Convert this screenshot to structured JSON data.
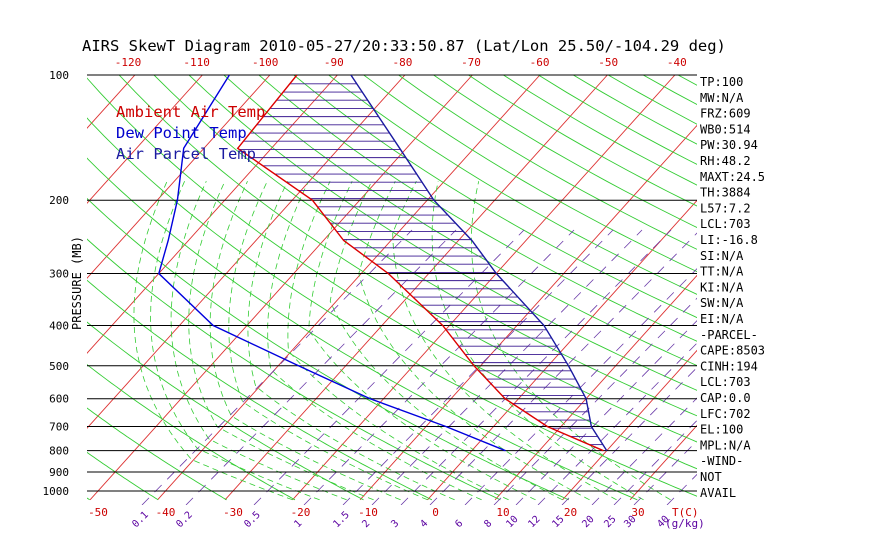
{
  "chart_data": {
    "type": "skew-t",
    "title": "AIRS SkewT Diagram 2010-05-27/20:33:50.87 (Lat/Lon 25.50/-104.29 deg)",
    "ylabel": "PRESSURE (MB)",
    "legend": [
      {
        "label": "Ambient Air Temp",
        "color": "#cc0000"
      },
      {
        "label": "Dew Point Temp",
        "color": "#0000cc"
      },
      {
        "label": "Air Parcel Temp",
        "color": "#1a1aa0"
      }
    ],
    "pressure_ticks": [
      100,
      200,
      300,
      400,
      500,
      600,
      700,
      800,
      900,
      1000
    ],
    "top_temp_ticks": [
      -120,
      -110,
      -100,
      -90,
      -80,
      -70,
      -60,
      -50,
      -40
    ],
    "bottom_temp_ticks": [
      -50,
      -40,
      -30,
      -20,
      -10,
      0,
      10,
      20,
      30
    ],
    "bottom_temp_unit": "T(C)",
    "mixing_ratio_ticks": [
      "0.1",
      "0.2",
      "0.5",
      "1",
      "1.5",
      "2",
      "3",
      "4",
      "6",
      "8",
      "10",
      "12",
      "15",
      "20",
      "25",
      "30",
      "40"
    ],
    "mixing_ratio_unit": "(g/kg)",
    "ambient_temperature": [
      {
        "p": 100,
        "t": -76
      },
      {
        "p": 150,
        "t": -75
      },
      {
        "p": 200,
        "t": -57
      },
      {
        "p": 250,
        "t": -47
      },
      {
        "p": 300,
        "t": -36
      },
      {
        "p": 400,
        "t": -21
      },
      {
        "p": 500,
        "t": -11
      },
      {
        "p": 600,
        "t": -2
      },
      {
        "p": 700,
        "t": 8
      },
      {
        "p": 800,
        "t": 19.5
      }
    ],
    "dew_point": [
      {
        "p": 100,
        "t": -86
      },
      {
        "p": 150,
        "t": -83
      },
      {
        "p": 200,
        "t": -77
      },
      {
        "p": 250,
        "t": -73
      },
      {
        "p": 300,
        "t": -70
      },
      {
        "p": 400,
        "t": -55
      },
      {
        "p": 500,
        "t": -37
      },
      {
        "p": 600,
        "t": -22
      },
      {
        "p": 700,
        "t": -7
      },
      {
        "p": 800,
        "t": 5
      }
    ],
    "parcel_temperature": [
      {
        "p": 100,
        "t": -68
      },
      {
        "p": 150,
        "t": -51
      },
      {
        "p": 200,
        "t": -39
      },
      {
        "p": 250,
        "t": -28
      },
      {
        "p": 300,
        "t": -20
      },
      {
        "p": 400,
        "t": -6
      },
      {
        "p": 500,
        "t": 3
      },
      {
        "p": 600,
        "t": 10
      },
      {
        "p": 700,
        "t": 14.5
      },
      {
        "p": 800,
        "t": 20
      }
    ],
    "indices": [
      "TP:100",
      "MW:N/A",
      "FRZ:609",
      "WB0:514",
      "PW:30.94",
      "RH:48.2",
      "MAXT:24.5",
      "TH:3884",
      "L57:7.2",
      "LCL:703",
      "LI:-16.8",
      "SI:N/A",
      "TT:N/A",
      "KI:N/A",
      "SW:N/A",
      "EI:N/A",
      "-PARCEL-",
      "CAPE:8503",
      "CINH:194",
      "LCL:703",
      "CAP:0.0",
      "LFC:702",
      "EL:100",
      "MPL:N/A",
      "-WIND-",
      "NOT",
      "AVAIL"
    ]
  }
}
